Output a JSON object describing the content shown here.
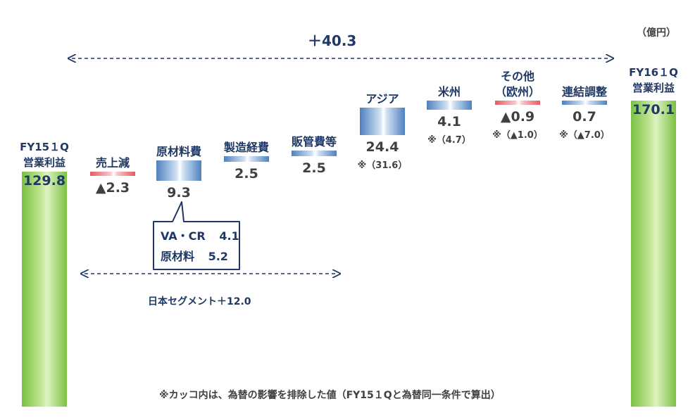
{
  "unit": "（億円）",
  "total_change": "＋40.3",
  "japan_segment": "日本セグメント＋12.0",
  "footnote": "※カッコ内は、為替の影響を排除した値（FY15１Qと為替同一条件で算出）",
  "callout": {
    "line1_label": "VA・CR",
    "line1_value": "4.1",
    "line2_label": "原材料",
    "line2_value": "5.2"
  },
  "colors": {
    "start_end": "#8cc63f",
    "increase": "#4f81bd",
    "decrease": "#e15b64",
    "text": "#1f3864"
  },
  "chart_data": {
    "type": "bar",
    "subtype": "waterfall",
    "title": "",
    "unit": "億円",
    "categories": [
      {
        "label": "FY15１Q\n営業利益",
        "value": 129.8,
        "value_label": "129.8",
        "kind": "start",
        "note": ""
      },
      {
        "label": "売上減",
        "value": -2.3,
        "value_label": "▲2.3",
        "kind": "decrease",
        "note": ""
      },
      {
        "label": "原材料費",
        "value": 9.3,
        "value_label": "9.3",
        "kind": "increase",
        "note": ""
      },
      {
        "label": "製造経費",
        "value": 2.5,
        "value_label": "2.5",
        "kind": "increase",
        "note": ""
      },
      {
        "label": "販管費等",
        "value": 2.5,
        "value_label": "2.5",
        "kind": "increase",
        "note": ""
      },
      {
        "label": "アジア",
        "value": 24.4,
        "value_label": "24.4",
        "kind": "increase",
        "note": "※（31.6）"
      },
      {
        "label": "米州",
        "value": 4.1,
        "value_label": "4.1",
        "kind": "increase",
        "note": "※（4.7）"
      },
      {
        "label": "その他\n（欧州）",
        "value": -0.9,
        "value_label": "▲0.9",
        "kind": "decrease",
        "note": "※（▲1.0）"
      },
      {
        "label": "連結調整",
        "value": 0.7,
        "value_label": "0.7",
        "kind": "increase",
        "note": "※（▲7.0）"
      },
      {
        "label": "FY16１Q\n営業利益",
        "value": 170.1,
        "value_label": "170.1",
        "kind": "end",
        "note": ""
      }
    ]
  }
}
